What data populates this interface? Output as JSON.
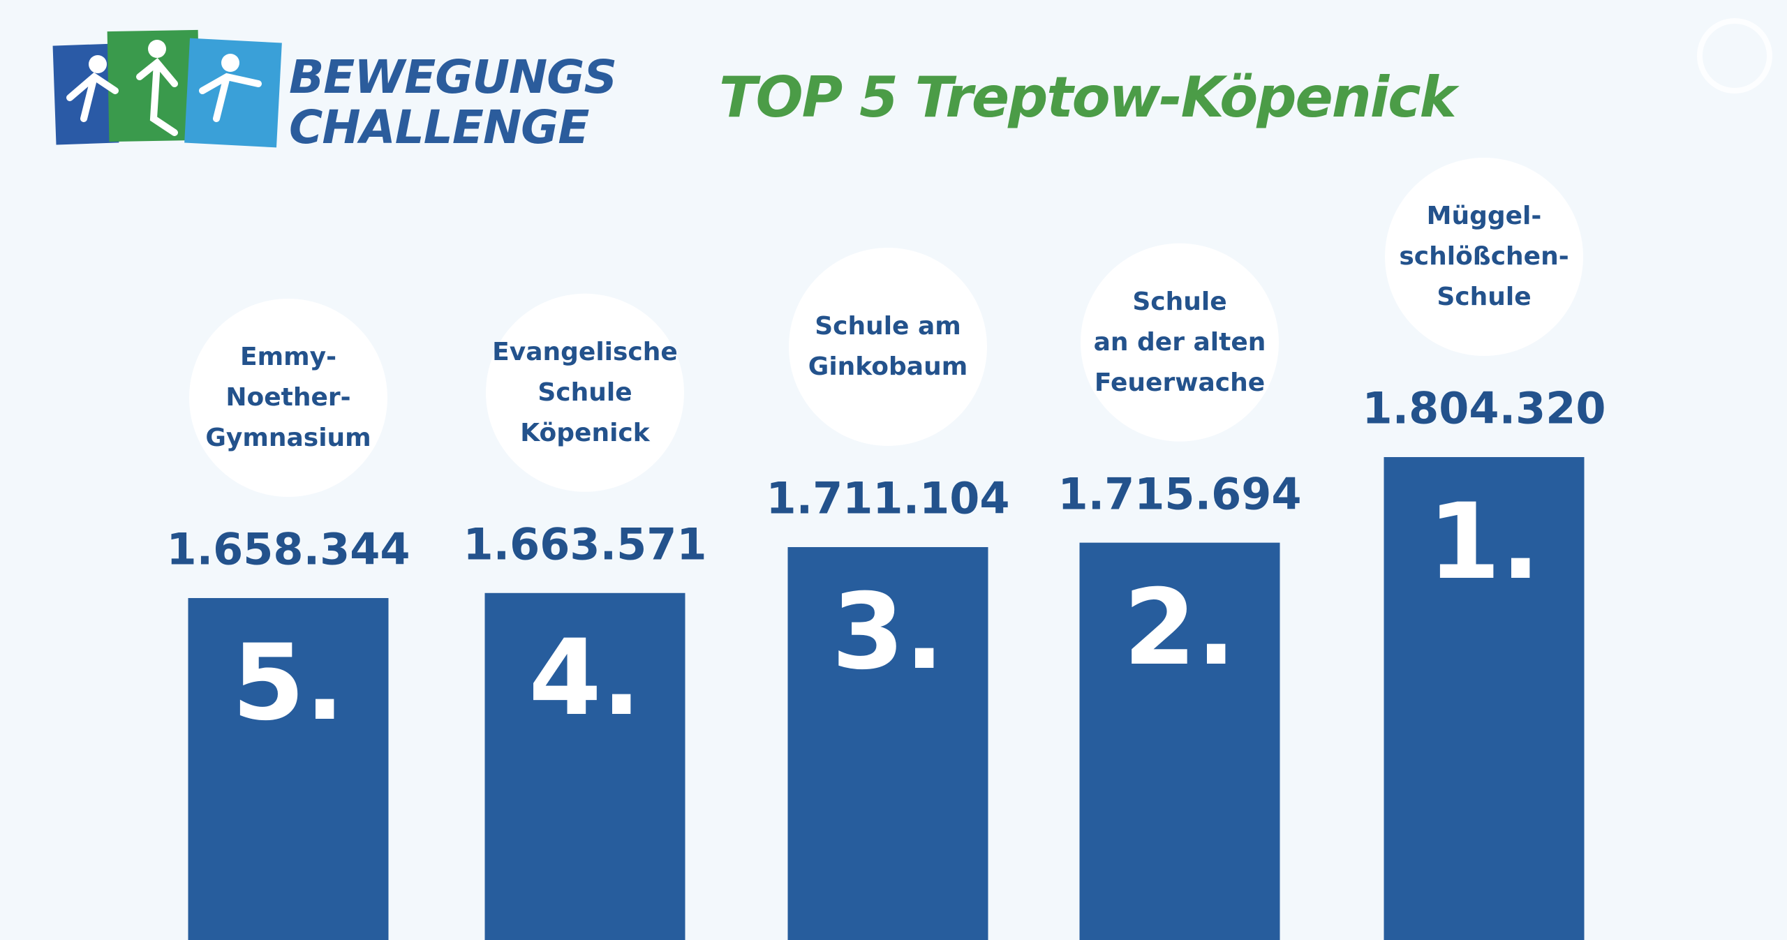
{
  "header": {
    "logo_line1": "BEWEGUNGS",
    "logo_line2": "CHALLENGE"
  },
  "chart_data": {
    "type": "bar",
    "title": "TOP 5 Treptow-Köpenick",
    "categories": [
      "Emmy-\nNoether-\nGymnasium",
      "Evangelische\nSchule Köpenick",
      "Schule am\nGinkobaum",
      "Schule\nan der alten\nFeuerwache",
      "Müggel-\nschlößchen-\nSchule"
    ],
    "values": [
      1658344,
      1663571,
      1711104,
      1715694,
      1804320
    ],
    "value_labels": [
      "1.658.344",
      "1.663.571",
      "1.711.104",
      "1.715.694",
      "1.804.320"
    ],
    "rank_labels": [
      "5.",
      "4.",
      "3.",
      "2.",
      "1."
    ],
    "color": "#275d9d"
  }
}
